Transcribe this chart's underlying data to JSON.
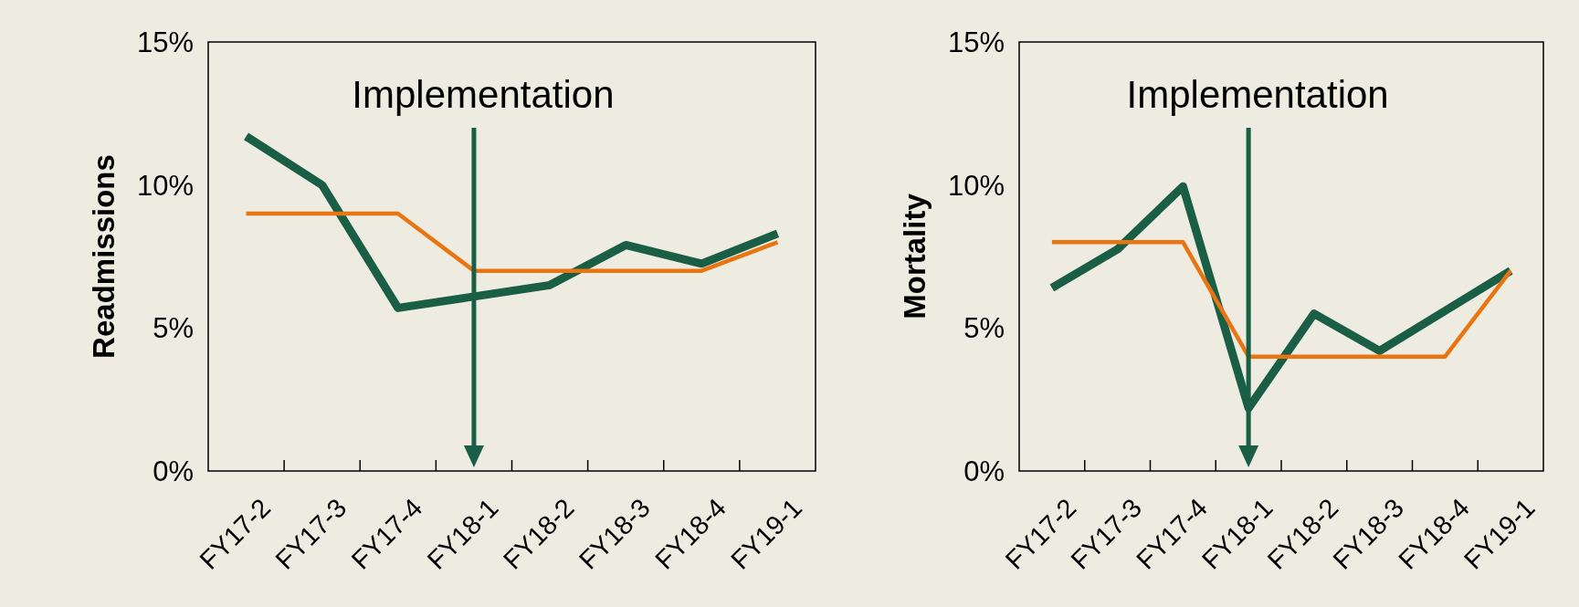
{
  "chart_data": [
    {
      "type": "line",
      "ylabel": "Readmissions",
      "categories": [
        "FY17-2",
        "FY17-3",
        "FY17-4",
        "FY18-1",
        "FY18-2",
        "FY18-3",
        "FY18-4",
        "FY19-1"
      ],
      "series": [
        {
          "color": "#1a5e45",
          "values": [
            11.7,
            10.0,
            5.7,
            6.1,
            6.5,
            7.9,
            7.25,
            8.3
          ]
        },
        {
          "color": "#e87511",
          "values": [
            9,
            9,
            9,
            7,
            7,
            7,
            7,
            8
          ]
        }
      ],
      "ylim": [
        0,
        15
      ],
      "yticks": [
        {
          "value": 0,
          "label": "0%"
        },
        {
          "value": 5,
          "label": "5%"
        },
        {
          "value": 10,
          "label": "10%"
        },
        {
          "value": 15,
          "label": "15%"
        }
      ],
      "grid": false,
      "marker": "none",
      "ref_lines": [
        {
          "axis": "x",
          "value": "FY18-1",
          "label": "Implementation",
          "color": "#1a5e45"
        }
      ]
    },
    {
      "type": "line",
      "ylabel": "Mortality",
      "categories": [
        "FY17-2",
        "FY17-3",
        "FY17-4",
        "FY18-1",
        "FY18-2",
        "FY18-3",
        "FY18-4",
        "FY19-1"
      ],
      "series": [
        {
          "color": "#1a5e45",
          "values": [
            6.4,
            7.75,
            9.95,
            2.2,
            5.5,
            4.2,
            5.6,
            7.0
          ]
        },
        {
          "color": "#e87511",
          "values": [
            8,
            8,
            8,
            4,
            4,
            4,
            4,
            7
          ]
        }
      ],
      "ylim": [
        0,
        15
      ],
      "yticks": [
        {
          "value": 0,
          "label": "0%"
        },
        {
          "value": 5,
          "label": "5%"
        },
        {
          "value": 10,
          "label": "10%"
        },
        {
          "value": 15,
          "label": "15%"
        }
      ],
      "grid": false,
      "marker": "none",
      "ref_lines": [
        {
          "axis": "x",
          "value": "FY18-1",
          "label": "Implementation",
          "color": "#1a5e45"
        }
      ]
    }
  ]
}
